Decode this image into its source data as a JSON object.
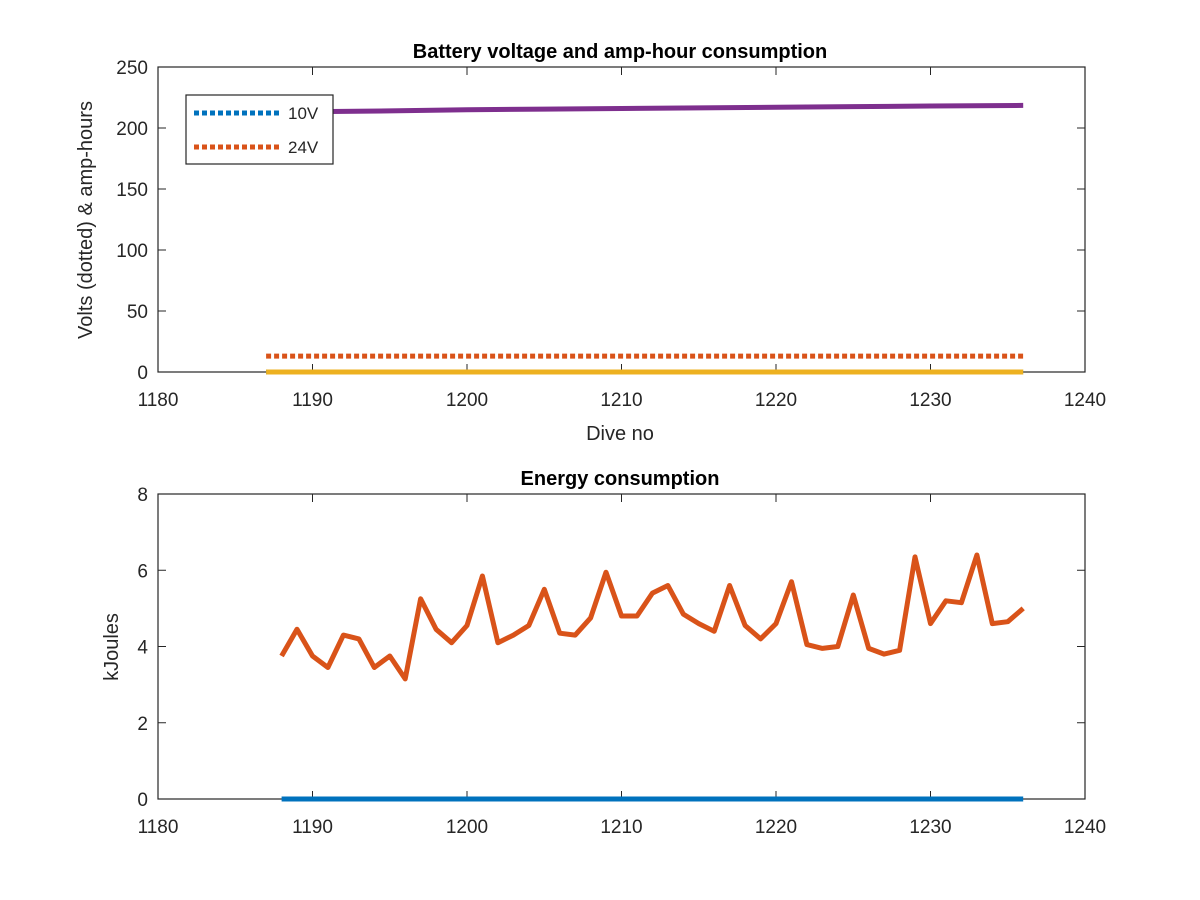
{
  "figure": {
    "colors": {
      "blue": "#0072BD",
      "orange": "#D95319",
      "yellow": "#EDB120",
      "purple": "#7E2F8E",
      "axis": "#262626",
      "background": "#ffffff"
    }
  },
  "chart_data": [
    {
      "type": "line",
      "title": "Battery voltage and amp-hour consumption",
      "xlabel": "Dive no",
      "ylabel": "Volts (dotted) & amp-hours",
      "xlim": [
        1180,
        1240
      ],
      "ylim": [
        0,
        250
      ],
      "xticks": [
        1180,
        1190,
        1200,
        1210,
        1220,
        1230,
        1240
      ],
      "yticks": [
        0,
        50,
        100,
        150,
        200,
        250
      ],
      "grid": false,
      "legend_position": "top-left",
      "series": [
        {
          "name": "10V",
          "color": "#0072BD",
          "style": "dotted",
          "in_legend": true,
          "x": [
            1187,
            1236
          ],
          "y": [
            0,
            0
          ]
        },
        {
          "name": "24V",
          "color": "#D95319",
          "style": "dotted",
          "in_legend": true,
          "x": [
            1187,
            1236
          ],
          "y": [
            13,
            13
          ]
        },
        {
          "color": "#EDB120",
          "style": "solid",
          "in_legend": false,
          "x": [
            1187,
            1236
          ],
          "y": [
            0,
            0
          ]
        },
        {
          "color": "#7E2F8E",
          "style": "solid",
          "in_legend": false,
          "x": [
            1187,
            1195,
            1200,
            1205,
            1210,
            1215,
            1220,
            1225,
            1230,
            1236
          ],
          "y": [
            213,
            214,
            215,
            215.5,
            216,
            216.5,
            217,
            217.5,
            218,
            218.5
          ]
        }
      ]
    },
    {
      "type": "line",
      "title": "Energy consumption",
      "xlabel": "",
      "ylabel": "kJoules",
      "xlim": [
        1180,
        1240
      ],
      "ylim": [
        0,
        8
      ],
      "xticks": [
        1180,
        1190,
        1200,
        1210,
        1220,
        1230,
        1240
      ],
      "yticks": [
        0,
        2,
        4,
        6,
        8
      ],
      "grid": false,
      "series": [
        {
          "color": "#0072BD",
          "style": "solid",
          "x": [
            1188,
            1236
          ],
          "y": [
            0,
            0
          ]
        },
        {
          "color": "#D95319",
          "style": "solid",
          "x": [
            1188,
            1189,
            1190,
            1191,
            1192,
            1193,
            1194,
            1195,
            1196,
            1197,
            1198,
            1199,
            1200,
            1201,
            1202,
            1203,
            1204,
            1205,
            1206,
            1207,
            1208,
            1209,
            1210,
            1211,
            1212,
            1213,
            1214,
            1215,
            1216,
            1217,
            1218,
            1219,
            1220,
            1221,
            1222,
            1223,
            1224,
            1225,
            1226,
            1227,
            1228,
            1229,
            1230,
            1231,
            1232,
            1233,
            1234,
            1235,
            1236
          ],
          "y": [
            3.75,
            4.45,
            3.75,
            3.45,
            4.3,
            4.2,
            3.45,
            3.75,
            3.15,
            5.25,
            4.45,
            4.1,
            4.55,
            5.85,
            4.1,
            4.3,
            4.55,
            5.5,
            4.35,
            4.3,
            4.75,
            5.95,
            4.8,
            4.8,
            5.4,
            5.6,
            4.85,
            4.6,
            4.4,
            5.6,
            4.55,
            4.2,
            4.6,
            5.7,
            4.05,
            3.95,
            4.0,
            5.35,
            3.95,
            3.8,
            3.9,
            6.35,
            4.6,
            5.2,
            5.15,
            6.4,
            4.6,
            4.65,
            5.0
          ]
        }
      ]
    }
  ]
}
